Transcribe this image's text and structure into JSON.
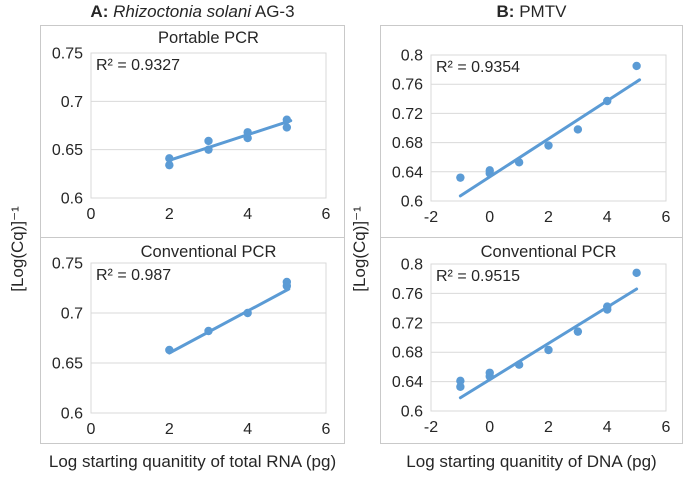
{
  "figure": {
    "y_axis_label": "[Log(Cq)]⁻¹",
    "panels": [
      {
        "id": "A",
        "title": {
          "bold": "A:",
          "italic": "Rhizoctonia solani",
          "regular": "AG-3"
        },
        "x_axis_label": "Log starting quanitity of total RNA (pg)"
      },
      {
        "id": "B",
        "title": {
          "bold": "B:",
          "italic": "",
          "regular": "PMTV"
        },
        "x_axis_label": "Log starting quanitity of DNA (pg)"
      }
    ]
  },
  "colors": {
    "series": "#5B9BD5",
    "gridline": "#D9D9D9",
    "box_border": "#C9C9C9",
    "text": "#262626"
  },
  "chart_data": [
    {
      "type": "scatter",
      "panel": "A",
      "position": "top",
      "title": "Portable PCR",
      "r2_label": "R² = 0.9327",
      "xlabel": "Log starting quanitity of total RNA (pg)",
      "ylabel": "[Log(Cq)]⁻¹",
      "xlim": [
        0,
        6
      ],
      "ylim": [
        0.6,
        0.75
      ],
      "xticks": [
        0,
        2,
        4,
        6
      ],
      "yticks": [
        0.6,
        0.65,
        0.7,
        0.75
      ],
      "grid": "horizontal",
      "legend": "none",
      "points": [
        [
          2,
          0.634
        ],
        [
          2,
          0.641
        ],
        [
          3,
          0.65
        ],
        [
          3,
          0.659
        ],
        [
          4,
          0.662
        ],
        [
          4,
          0.668
        ],
        [
          5,
          0.673
        ],
        [
          5,
          0.681
        ]
      ],
      "trendline": [
        [
          2,
          0.639
        ],
        [
          5.1,
          0.68
        ]
      ]
    },
    {
      "type": "scatter",
      "panel": "B",
      "position": "top",
      "title": "",
      "r2_label": "R² = 0.9354",
      "xlabel": "Log starting quanitity of DNA (pg)",
      "ylabel": "[Log(Cq)]⁻¹",
      "xlim": [
        -2,
        6
      ],
      "ylim": [
        0.6,
        0.8
      ],
      "xticks": [
        -2,
        0,
        2,
        4,
        6
      ],
      "yticks": [
        0.6,
        0.64,
        0.68,
        0.72,
        0.76,
        0.8
      ],
      "grid": "horizontal",
      "legend": "none",
      "points": [
        [
          -1,
          0.632
        ],
        [
          0,
          0.638
        ],
        [
          0,
          0.642
        ],
        [
          1,
          0.653
        ],
        [
          2,
          0.676
        ],
        [
          3,
          0.698
        ],
        [
          4,
          0.737
        ],
        [
          5,
          0.785
        ]
      ],
      "trendline": [
        [
          -1,
          0.607
        ],
        [
          5.1,
          0.766
        ]
      ]
    },
    {
      "type": "scatter",
      "panel": "A",
      "position": "bottom",
      "title": "Conventional PCR",
      "r2_label": "R² = 0.987",
      "xlabel": "Log starting quanitity of total RNA (pg)",
      "ylabel": "[Log(Cq)]⁻¹",
      "xlim": [
        0,
        6
      ],
      "ylim": [
        0.6,
        0.75
      ],
      "xticks": [
        0,
        2,
        4,
        6
      ],
      "yticks": [
        0.6,
        0.65,
        0.7,
        0.75
      ],
      "grid": "horizontal",
      "legend": "none",
      "points": [
        [
          2,
          0.663
        ],
        [
          3,
          0.682
        ],
        [
          4,
          0.7
        ],
        [
          5,
          0.727
        ],
        [
          5,
          0.731
        ]
      ],
      "trendline": [
        [
          2,
          0.66
        ],
        [
          5.05,
          0.724
        ]
      ]
    },
    {
      "type": "scatter",
      "panel": "B",
      "position": "bottom",
      "title": "Conventional PCR",
      "r2_label": "R² = 0.9515",
      "xlabel": "Log starting quanitity of DNA (pg)",
      "ylabel": "[Log(Cq)]⁻¹",
      "xlim": [
        -2,
        6
      ],
      "ylim": [
        0.6,
        0.8
      ],
      "xticks": [
        -2,
        0,
        2,
        4,
        6
      ],
      "yticks": [
        0.6,
        0.64,
        0.68,
        0.72,
        0.76,
        0.8
      ],
      "grid": "horizontal",
      "legend": "none",
      "points": [
        [
          -1,
          0.633
        ],
        [
          -1,
          0.641
        ],
        [
          0,
          0.647
        ],
        [
          0,
          0.652
        ],
        [
          1,
          0.663
        ],
        [
          2,
          0.683
        ],
        [
          3,
          0.708
        ],
        [
          4,
          0.738
        ],
        [
          4,
          0.742
        ],
        [
          5,
          0.788
        ]
      ],
      "trendline": [
        [
          -1,
          0.618
        ],
        [
          5,
          0.766
        ]
      ]
    }
  ]
}
